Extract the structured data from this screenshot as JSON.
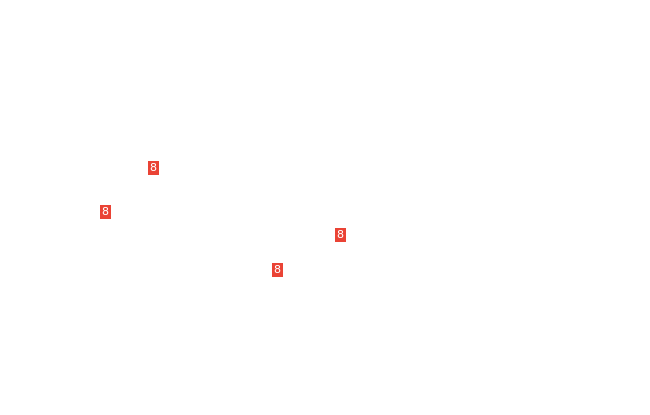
{
  "accent_color": "#ea4335",
  "badges": [
    {
      "label": "8"
    },
    {
      "label": "8"
    },
    {
      "label": "8"
    },
    {
      "label": "8"
    }
  ]
}
